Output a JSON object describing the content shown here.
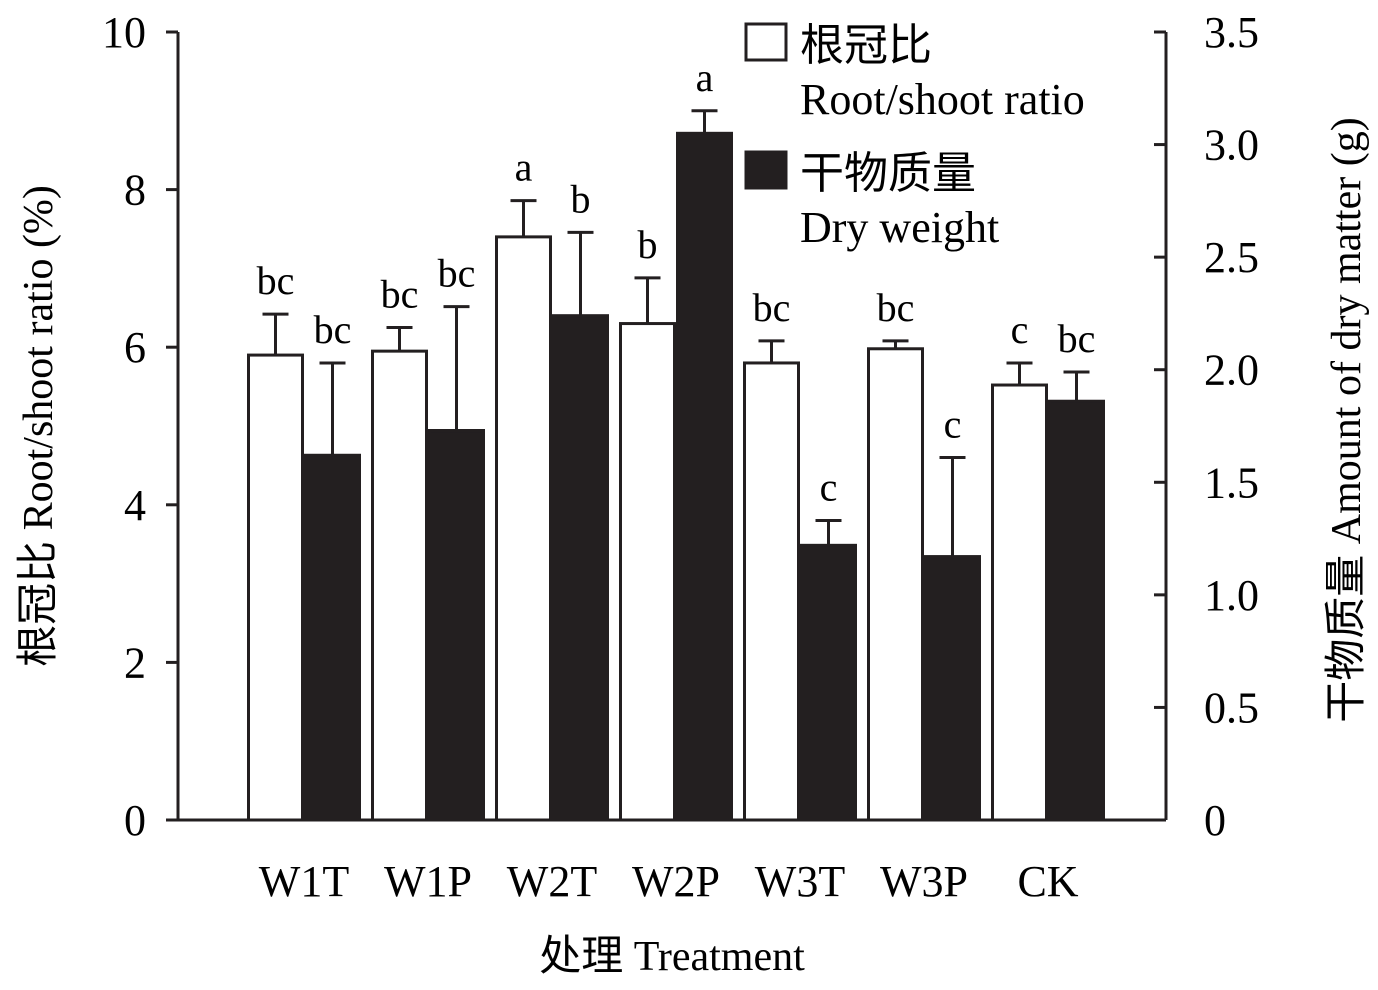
{
  "chart_data": {
    "type": "bar",
    "categories": [
      "W1T",
      "W1P",
      "W2T",
      "W2P",
      "W3T",
      "W3P",
      "CK"
    ],
    "series": [
      {
        "name": "根冠比 Root/shoot ratio",
        "legend_line1": "根冠比",
        "legend_line2": "Root/shoot ratio",
        "axis": "left",
        "fill": "#ffffff",
        "values": [
          5.9,
          5.95,
          7.4,
          6.3,
          5.8,
          5.98,
          5.52
        ],
        "errors": [
          0.52,
          0.3,
          0.46,
          0.58,
          0.28,
          0.1,
          0.28
        ],
        "letters": [
          "bc",
          "bc",
          "a",
          "b",
          "bc",
          "bc",
          "c"
        ]
      },
      {
        "name": "干物质量 Dry weight",
        "legend_line1": "干物质量",
        "legend_line2": "Dry weight",
        "axis": "right",
        "fill": "#231f20",
        "values": [
          1.62,
          1.73,
          2.24,
          3.05,
          1.22,
          1.17,
          1.86
        ],
        "errors": [
          0.41,
          0.55,
          0.37,
          0.1,
          0.11,
          0.44,
          0.13
        ],
        "letters": [
          "bc",
          "bc",
          "b",
          "a",
          "c",
          "c",
          "bc"
        ]
      }
    ],
    "left_axis": {
      "label": "根冠比 Root/shoot ratio (%)",
      "ylim": [
        0,
        10
      ],
      "ticks": [
        0,
        2,
        4,
        6,
        8,
        10
      ],
      "tick_labels": [
        "0",
        "2",
        "4",
        "6",
        "8",
        "10"
      ]
    },
    "right_axis": {
      "label": "干物质量 Amount of dry matter (g)",
      "ylim": [
        0,
        3.5
      ],
      "ticks": [
        0,
        0.5,
        1.0,
        1.5,
        2.0,
        2.5,
        3.0,
        3.5
      ],
      "tick_labels": [
        "0",
        "0.5",
        "1.0",
        "1.5",
        "2.0",
        "2.5",
        "3.0",
        "3.5"
      ]
    },
    "xlabel": "处理 Treatment",
    "legend_position": "top-right",
    "grid": false
  }
}
